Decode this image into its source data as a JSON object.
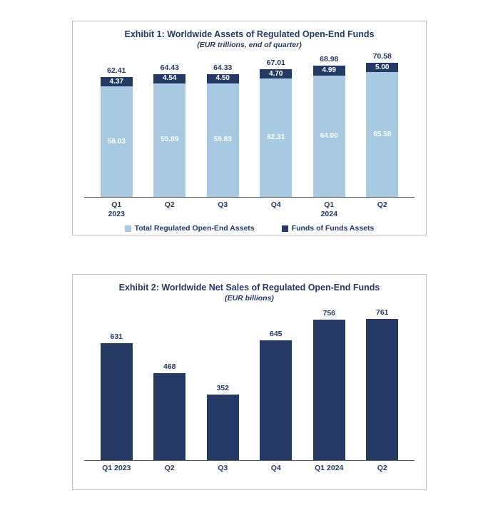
{
  "page": {
    "background": "#FFFFFF",
    "panel_border_color": "#BFBFBF",
    "navy_color": "#243A65",
    "light_blue_color": "#A7C9E2",
    "axis_color": "#595959"
  },
  "chart_data": [
    {
      "type": "bar",
      "stacked": true,
      "title": "Exhibit 1: Worldwide Assets of Regulated Open-End Funds",
      "subtitle": "(EUR trillions, end of quarter)",
      "quarter_labels": [
        "Q1",
        "Q2",
        "Q3",
        "Q4",
        "Q1",
        "Q2"
      ],
      "year_labels": [
        "2023",
        "",
        "",
        "",
        "2024",
        ""
      ],
      "series": [
        {
          "name": "Total Regulated Open-End Assets",
          "color": "#A7C9E2",
          "values": [
            58.03,
            59.89,
            59.83,
            62.31,
            64.0,
            65.58
          ],
          "value_labels": [
            "58.03",
            "59.89",
            "59.83",
            "62.31",
            "64.00",
            "65.58"
          ]
        },
        {
          "name": "Funds of Funds Assets",
          "color": "#243A65",
          "values": [
            4.37,
            4.54,
            4.5,
            4.7,
            4.99,
            5.0
          ],
          "value_labels": [
            "4.37",
            "4.54",
            "4.50",
            "4.70",
            "4.99",
            "5.00"
          ]
        }
      ],
      "totals": [
        62.41,
        64.43,
        64.33,
        67.01,
        68.98,
        70.58
      ],
      "total_labels": [
        "62.41",
        "64.43",
        "64.33",
        "67.01",
        "68.98",
        "70.58"
      ],
      "ylim": [
        0,
        70.58
      ],
      "grid": false,
      "legend_position": "bottom"
    },
    {
      "type": "bar",
      "stacked": false,
      "title": "Exhibit 2: Worldwide Net Sales of Regulated Open-End Funds",
      "subtitle": "(EUR billions)",
      "categories": [
        "Q1 2023",
        "Q2",
        "Q3",
        "Q4",
        "Q1 2024",
        "Q2"
      ],
      "values": [
        631,
        468,
        352,
        645,
        756,
        761
      ],
      "value_labels": [
        "631",
        "468",
        "352",
        "645",
        "756",
        "761"
      ],
      "bar_color": "#243A65",
      "ylim": [
        0,
        761
      ],
      "grid": false,
      "legend_position": "none"
    }
  ]
}
